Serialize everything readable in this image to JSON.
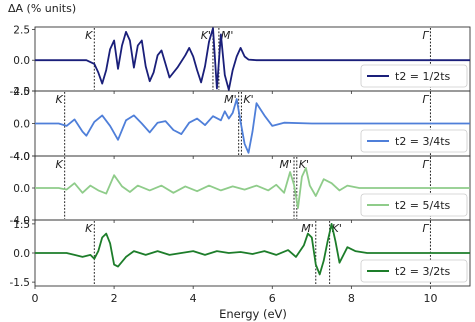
{
  "chart_data": {
    "type": "line",
    "ylabel": "ΔA (% units)",
    "xlabel": "Energy (eV)",
    "xlim": [
      0,
      11
    ],
    "xticks": [
      0,
      2,
      4,
      6,
      8,
      10
    ],
    "grid": false,
    "legend_position": "bottom-right",
    "panels": [
      {
        "name": "t2 = 1/2ts",
        "color": "#1a1f7a",
        "ylim": [
          -2.5,
          2.7
        ],
        "yticks": [
          2.5,
          0.0,
          -2.5
        ],
        "vlines": [
          {
            "label": "K",
            "x": 1.5
          },
          {
            "label": "K'",
            "x": 4.5
          },
          {
            "label": "M'",
            "x": 4.65
          },
          {
            "label": "Γ",
            "x": 10.0
          }
        ],
        "x": [
          0.0,
          1.3,
          1.5,
          1.6,
          1.7,
          1.8,
          1.9,
          2.0,
          2.1,
          2.2,
          2.3,
          2.4,
          2.5,
          2.6,
          2.7,
          2.8,
          2.9,
          3.0,
          3.1,
          3.2,
          3.3,
          3.4,
          3.6,
          3.8,
          3.9,
          4.0,
          4.1,
          4.2,
          4.3,
          4.4,
          4.5,
          4.6,
          4.7,
          4.8,
          4.9,
          5.0,
          5.1,
          5.2,
          5.3,
          5.4,
          5.6,
          6.0,
          11.0
        ],
        "y": [
          0.0,
          0.0,
          -0.3,
          -1.0,
          -1.9,
          -0.8,
          0.9,
          1.6,
          -0.7,
          1.2,
          2.3,
          1.6,
          -0.6,
          1.2,
          1.6,
          -0.5,
          -1.7,
          -1.0,
          0.4,
          0.8,
          -0.3,
          -1.4,
          -0.6,
          0.4,
          1.0,
          0.3,
          -0.8,
          -1.8,
          -0.5,
          1.5,
          2.6,
          -2.3,
          2.1,
          -1.2,
          -2.4,
          -0.8,
          0.3,
          1.0,
          0.3,
          0.05,
          0.0,
          0.0,
          0.0
        ]
      },
      {
        "name": "t2 = 3/4ts",
        "color": "#4f7fd9",
        "ylim": [
          -4.0,
          4.0
        ],
        "yticks": [
          4.0,
          0.0,
          -4.0
        ],
        "vlines": [
          {
            "label": "K",
            "x": 0.75
          },
          {
            "label": "M'",
            "x": 5.15
          },
          {
            "label": "K'",
            "x": 5.22
          },
          {
            "label": "Γ",
            "x": 10.0
          }
        ],
        "x": [
          0.0,
          0.6,
          0.8,
          1.0,
          1.2,
          1.3,
          1.5,
          1.7,
          1.9,
          2.1,
          2.3,
          2.5,
          2.7,
          2.9,
          3.1,
          3.3,
          3.5,
          3.7,
          3.9,
          4.1,
          4.3,
          4.5,
          4.7,
          4.8,
          4.9,
          5.0,
          5.1,
          5.2,
          5.3,
          5.4,
          5.5,
          5.6,
          5.8,
          6.0,
          6.3,
          7.0,
          11.0
        ],
        "y": [
          0.0,
          0.0,
          -0.3,
          0.5,
          -1.0,
          -1.5,
          0.2,
          1.0,
          -0.3,
          -2.0,
          0.4,
          1.0,
          0.0,
          -1.1,
          0.1,
          0.3,
          -0.8,
          -1.3,
          0.1,
          0.6,
          -0.2,
          0.9,
          0.4,
          1.5,
          0.6,
          1.3,
          3.0,
          0.2,
          -2.5,
          -3.6,
          -1.0,
          2.5,
          1.0,
          -0.3,
          0.1,
          0.0,
          0.0
        ]
      },
      {
        "name": "t2 = 5/4ts",
        "color": "#8fcc8a",
        "ylim": [
          -4.0,
          4.0
        ],
        "yticks": [
          4.0,
          0.0,
          -4.0
        ],
        "vlines": [
          {
            "label": "K",
            "x": 0.75
          },
          {
            "label": "M'",
            "x": 6.55
          },
          {
            "label": "K'",
            "x": 6.62
          },
          {
            "label": "Γ",
            "x": 10.0
          }
        ],
        "x": [
          0.0,
          0.6,
          0.8,
          1.0,
          1.2,
          1.4,
          1.6,
          1.8,
          2.0,
          2.2,
          2.4,
          2.6,
          2.9,
          3.2,
          3.5,
          3.8,
          4.1,
          4.4,
          4.7,
          5.0,
          5.3,
          5.6,
          5.9,
          6.1,
          6.3,
          6.45,
          6.55,
          6.65,
          6.75,
          6.85,
          6.95,
          7.1,
          7.3,
          7.5,
          7.7,
          7.9,
          8.2,
          11.0
        ],
        "y": [
          0.0,
          0.0,
          -0.2,
          0.6,
          -0.6,
          0.3,
          -0.3,
          -0.7,
          1.6,
          0.2,
          -0.5,
          0.3,
          -0.3,
          0.3,
          -0.6,
          0.2,
          -0.4,
          0.3,
          -0.3,
          0.2,
          -0.2,
          0.3,
          -0.3,
          0.4,
          -0.6,
          2.0,
          0.4,
          -2.5,
          1.4,
          2.5,
          0.3,
          -1.0,
          1.1,
          0.6,
          -0.3,
          0.3,
          0.0,
          0.0
        ]
      },
      {
        "name": "t2 = 3/2ts",
        "color": "#1d7d2a",
        "ylim": [
          -1.7,
          1.7
        ],
        "yticks": [
          1.5,
          0.0,
          -1.5
        ],
        "vlines": [
          {
            "label": "K",
            "x": 1.5
          },
          {
            "label": "M'",
            "x": 7.1
          },
          {
            "label": "K'",
            "x": 7.45
          },
          {
            "label": "Γ",
            "x": 10.0
          }
        ],
        "x": [
          0.0,
          0.8,
          1.0,
          1.2,
          1.4,
          1.5,
          1.6,
          1.7,
          1.8,
          1.9,
          2.0,
          2.1,
          2.3,
          2.5,
          2.8,
          3.1,
          3.4,
          3.7,
          4.0,
          4.3,
          4.6,
          4.9,
          5.2,
          5.5,
          5.8,
          6.1,
          6.4,
          6.6,
          6.8,
          6.9,
          7.0,
          7.1,
          7.2,
          7.3,
          7.4,
          7.5,
          7.6,
          7.7,
          7.9,
          8.1,
          8.4,
          11.0
        ],
        "y": [
          0.0,
          0.0,
          -0.1,
          -0.2,
          -0.1,
          -0.3,
          0.1,
          0.8,
          1.0,
          0.5,
          -0.6,
          -0.7,
          -0.2,
          0.1,
          -0.1,
          0.1,
          -0.1,
          0.0,
          0.1,
          -0.1,
          0.1,
          0.0,
          0.05,
          -0.05,
          0.1,
          -0.1,
          0.15,
          -0.2,
          0.4,
          1.0,
          0.8,
          -0.6,
          -1.1,
          -0.4,
          0.6,
          1.5,
          0.6,
          -0.5,
          0.3,
          0.1,
          0.0,
          0.0
        ]
      }
    ]
  }
}
